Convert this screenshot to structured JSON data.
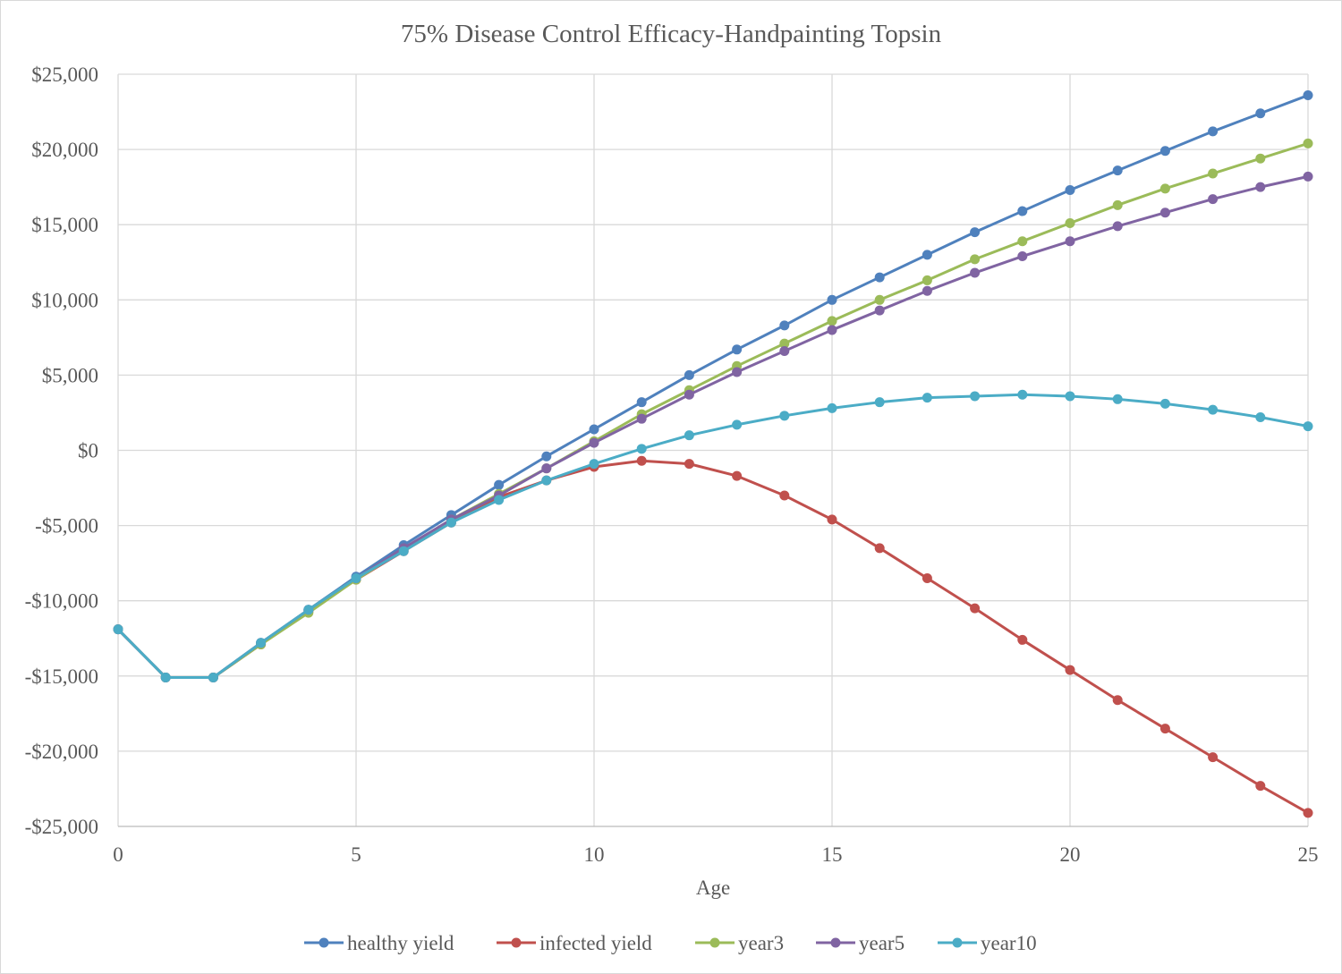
{
  "chart_data": {
    "type": "line",
    "title": "75% Disease Control Efficacy-Handpainting Topsin",
    "xlabel": "Age",
    "ylabel": "",
    "xlim": [
      0,
      25
    ],
    "ylim": [
      -25000,
      25000
    ],
    "x_ticks": [
      0,
      5,
      10,
      15,
      20,
      25
    ],
    "x_tick_labels": [
      "0",
      "5",
      "10",
      "15",
      "20",
      "25"
    ],
    "y_ticks": [
      -25000,
      -20000,
      -15000,
      -10000,
      -5000,
      0,
      5000,
      10000,
      15000,
      20000,
      25000
    ],
    "y_tick_labels": [
      "-$25,000",
      "-$20,000",
      "-$15,000",
      "-$10,000",
      "-$5,000",
      "$0",
      "$5,000",
      "$10,000",
      "$15,000",
      "$20,000",
      "$25,000"
    ],
    "grid": true,
    "legend_position": "bottom",
    "x": [
      0,
      1,
      2,
      3,
      4,
      5,
      6,
      7,
      8,
      9,
      10,
      11,
      12,
      13,
      14,
      15,
      16,
      17,
      18,
      19,
      20,
      21,
      22,
      23,
      24,
      25
    ],
    "series": [
      {
        "name": "healthy yield",
        "color": "#4f81bd",
        "values": [
          -11900,
          -15100,
          -15100,
          -12800,
          -10600,
          -8400,
          -6300,
          -4300,
          -2300,
          -400,
          1400,
          3200,
          5000,
          6700,
          8300,
          10000,
          11500,
          13000,
          14500,
          15900,
          17300,
          18600,
          19900,
          21200,
          22400,
          23600
        ]
      },
      {
        "name": "infected yield",
        "color": "#c0504d",
        "values": [
          -11900,
          -15100,
          -15100,
          -12900,
          -10700,
          -8600,
          -6700,
          -4800,
          -3100,
          -2000,
          -1100,
          -700,
          -900,
          -1700,
          -3000,
          -4600,
          -6500,
          -8500,
          -10500,
          -12600,
          -14600,
          -16600,
          -18500,
          -20400,
          -22300,
          -24100
        ]
      },
      {
        "name": "year3",
        "color": "#9bbb59",
        "values": [
          -11900,
          -15100,
          -15100,
          -12900,
          -10800,
          -8600,
          -6600,
          -4600,
          -2900,
          -1200,
          600,
          2400,
          4000,
          5600,
          7100,
          8600,
          10000,
          11300,
          12700,
          13900,
          15100,
          16300,
          17400,
          18400,
          19400,
          20400
        ]
      },
      {
        "name": "year5",
        "color": "#8064a2",
        "values": [
          -11900,
          -15100,
          -15100,
          -12800,
          -10600,
          -8500,
          -6500,
          -4600,
          -3000,
          -1200,
          500,
          2100,
          3700,
          5200,
          6600,
          8000,
          9300,
          10600,
          11800,
          12900,
          13900,
          14900,
          15800,
          16700,
          17500,
          18200
        ]
      },
      {
        "name": "year10",
        "color": "#4bacc6",
        "values": [
          -11900,
          -15100,
          -15100,
          -12800,
          -10600,
          -8500,
          -6700,
          -4800,
          -3300,
          -2000,
          -900,
          100,
          1000,
          1700,
          2300,
          2800,
          3200,
          3500,
          3600,
          3700,
          3600,
          3400,
          3100,
          2700,
          2200,
          1600
        ]
      }
    ]
  }
}
